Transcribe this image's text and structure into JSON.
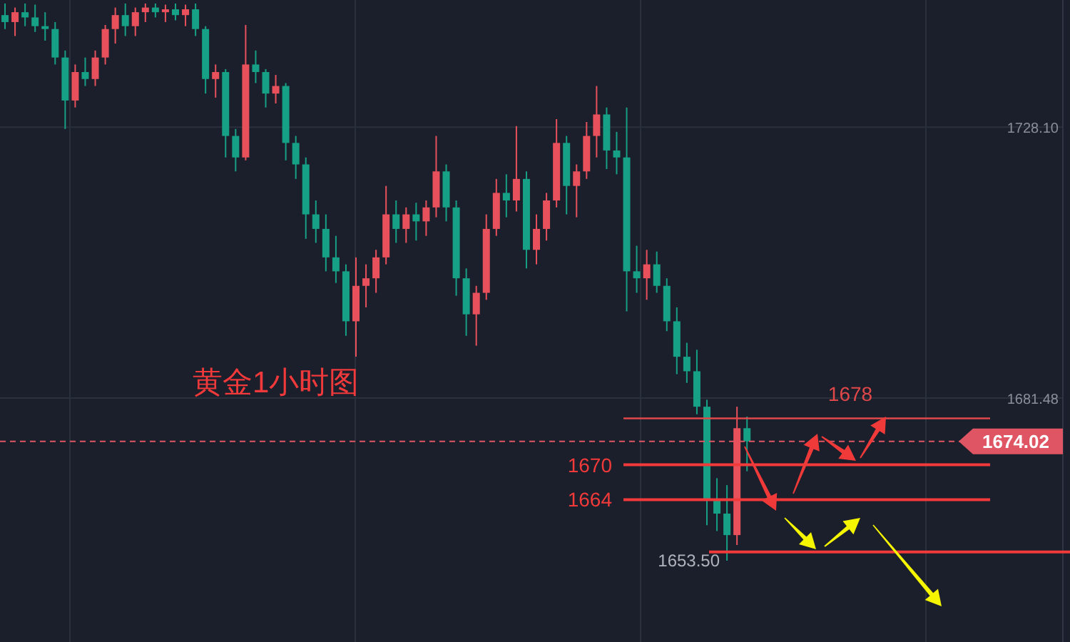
{
  "chart_data": {
    "type": "candlestick",
    "title": "黄金1小时图",
    "categories": [
      null,
      null,
      null,
      null,
      null,
      null,
      null,
      null,
      null,
      null,
      null,
      null,
      null,
      null,
      null,
      null,
      null,
      null,
      null,
      null,
      null,
      null,
      null,
      null,
      null,
      null,
      null,
      null,
      null,
      null,
      null,
      null,
      null,
      null,
      null,
      null,
      null,
      null,
      null,
      null,
      null,
      null,
      null,
      null,
      null,
      null,
      null,
      null,
      null,
      null,
      null,
      null,
      null,
      null,
      null,
      null,
      null,
      null,
      null,
      null,
      null,
      null,
      null,
      null,
      null,
      null,
      null,
      null,
      null,
      null,
      null,
      null,
      null,
      null,
      null,
      null,
      null,
      null,
      null,
      null,
      null,
      null,
      null,
      null,
      null,
      null,
      null,
      null,
      null,
      null,
      null,
      null,
      null,
      null,
      null,
      null,
      null,
      null,
      null,
      null,
      null,
      null,
      null,
      null,
      null,
      null
    ],
    "ohlc": [
      [
        1747.4,
        1749.4,
        1745.0,
        1746.2
      ],
      [
        1746.2,
        1748.7,
        1743.8,
        1747.9
      ],
      [
        1747.9,
        1749.4,
        1745.5,
        1747.0
      ],
      [
        1747.0,
        1749.2,
        1744.5,
        1745.5
      ],
      [
        1745.5,
        1747.9,
        1743.0,
        1745.0
      ],
      [
        1745.0,
        1746.2,
        1738.9,
        1740.1
      ],
      [
        1740.1,
        1741.3,
        1727.8,
        1732.7
      ],
      [
        1732.7,
        1738.9,
        1731.5,
        1737.6
      ],
      [
        1737.6,
        1740.1,
        1735.2,
        1736.4
      ],
      [
        1736.4,
        1741.3,
        1735.2,
        1740.1
      ],
      [
        1740.1,
        1745.7,
        1738.9,
        1745.0
      ],
      [
        1745.0,
        1748.7,
        1742.5,
        1747.4
      ],
      [
        1747.4,
        1749.4,
        1743.8,
        1745.5
      ],
      [
        1745.5,
        1748.7,
        1743.8,
        1747.9
      ],
      [
        1747.9,
        1749.4,
        1746.2,
        1748.7
      ],
      [
        1748.7,
        1749.4,
        1747.0,
        1747.9
      ],
      [
        1747.9,
        1749.2,
        1746.2,
        1748.4
      ],
      [
        1748.4,
        1749.4,
        1746.5,
        1747.4
      ],
      [
        1747.4,
        1749.2,
        1745.5,
        1748.4
      ],
      [
        1748.4,
        1749.4,
        1743.8,
        1745.0
      ],
      [
        1745.0,
        1745.5,
        1733.9,
        1736.4
      ],
      [
        1736.4,
        1738.9,
        1733.2,
        1737.6
      ],
      [
        1737.6,
        1738.1,
        1722.9,
        1726.6
      ],
      [
        1726.6,
        1727.8,
        1720.5,
        1722.9
      ],
      [
        1722.9,
        1745.7,
        1722.4,
        1738.9
      ],
      [
        1738.9,
        1741.3,
        1735.7,
        1737.6
      ],
      [
        1737.6,
        1738.1,
        1731.5,
        1733.9
      ],
      [
        1733.9,
        1737.1,
        1732.2,
        1735.2
      ],
      [
        1735.2,
        1735.7,
        1722.4,
        1725.4
      ],
      [
        1725.4,
        1726.6,
        1719.2,
        1721.7
      ],
      [
        1721.7,
        1722.9,
        1708.9,
        1713.1
      ],
      [
        1713.1,
        1715.5,
        1708.2,
        1710.6
      ],
      [
        1710.6,
        1713.1,
        1703.3,
        1705.7
      ],
      [
        1705.7,
        1709.4,
        1701.3,
        1703.3
      ],
      [
        1703.3,
        1704.5,
        1692.2,
        1694.7
      ],
      [
        1694.7,
        1705.7,
        1688.6,
        1700.8
      ],
      [
        1700.8,
        1704.5,
        1697.1,
        1702.1
      ],
      [
        1702.1,
        1707.0,
        1699.6,
        1705.7
      ],
      [
        1705.7,
        1718.0,
        1704.5,
        1713.1
      ],
      [
        1713.1,
        1715.5,
        1708.2,
        1710.6
      ],
      [
        1710.6,
        1714.3,
        1708.2,
        1713.1
      ],
      [
        1713.1,
        1715.1,
        1708.6,
        1711.9
      ],
      [
        1711.9,
        1715.5,
        1709.4,
        1714.3
      ],
      [
        1714.3,
        1726.6,
        1712.6,
        1720.5
      ],
      [
        1720.5,
        1721.7,
        1711.9,
        1714.3
      ],
      [
        1714.3,
        1715.5,
        1699.1,
        1702.1
      ],
      [
        1702.1,
        1703.8,
        1692.2,
        1695.9
      ],
      [
        1695.9,
        1700.8,
        1690.5,
        1699.6
      ],
      [
        1699.6,
        1713.1,
        1698.4,
        1710.6
      ],
      [
        1710.6,
        1719.2,
        1709.4,
        1716.8
      ],
      [
        1716.8,
        1720.0,
        1712.6,
        1715.5
      ],
      [
        1715.5,
        1728.3,
        1713.6,
        1719.2
      ],
      [
        1719.2,
        1720.5,
        1703.8,
        1707.0
      ],
      [
        1707.0,
        1713.1,
        1704.5,
        1710.6
      ],
      [
        1710.6,
        1716.8,
        1708.6,
        1715.5
      ],
      [
        1715.5,
        1729.5,
        1714.3,
        1725.4
      ],
      [
        1725.4,
        1726.6,
        1713.1,
        1718.0
      ],
      [
        1718.0,
        1721.7,
        1712.6,
        1720.5
      ],
      [
        1720.5,
        1729.0,
        1719.2,
        1726.6
      ],
      [
        1726.6,
        1735.2,
        1722.9,
        1730.3
      ],
      [
        1730.3,
        1731.5,
        1720.9,
        1724.1
      ],
      [
        1724.1,
        1727.3,
        1720.0,
        1722.9
      ],
      [
        1722.9,
        1731.5,
        1696.4,
        1703.3
      ],
      [
        1703.3,
        1707.7,
        1699.6,
        1702.1
      ],
      [
        1702.1,
        1707.0,
        1698.4,
        1704.5
      ],
      [
        1704.5,
        1706.7,
        1699.6,
        1700.8
      ],
      [
        1700.8,
        1702.1,
        1693.0,
        1694.7
      ],
      [
        1694.7,
        1697.1,
        1685.6,
        1688.6
      ],
      [
        1688.6,
        1691.0,
        1684.1,
        1686.1
      ],
      [
        1686.1,
        1689.8,
        1678.7,
        1680.0
      ],
      [
        1680.0,
        1681.2,
        1659.6,
        1664.0
      ],
      [
        1664.0,
        1667.7,
        1658.6,
        1661.6
      ],
      [
        1661.6,
        1666.5,
        1653.5,
        1657.9
      ],
      [
        1657.9,
        1680.0,
        1656.2,
        1676.3
      ],
      [
        1676.3,
        1678.3,
        1668.9,
        1674.02
      ],
      null,
      null,
      null,
      null,
      null,
      null,
      null,
      null,
      null,
      null,
      null,
      null,
      null,
      null,
      null,
      null,
      null,
      null,
      null,
      null,
      null,
      null,
      null,
      null,
      null,
      null,
      null,
      null,
      null,
      null,
      null
    ],
    "ylim": [
      1639.5,
      1750
    ],
    "yticks": [
      {
        "value": 1728.1,
        "label": "1728.10"
      },
      1681.48
    ],
    "tick_labels": "y",
    "grid": true,
    "ref_lines": [
      {
        "axis": "y",
        "value": 1678,
        "label": "1678",
        "color": "#e0484a"
      },
      {
        "axis": "y",
        "value": 1674.02,
        "label": "1674.02",
        "color": "#e05563",
        "line_style": "dashed"
      },
      {
        "axis": "y",
        "value": 1670,
        "label": "1670",
        "color": "#f23a3a"
      },
      {
        "axis": "y",
        "value": 1664,
        "label": "1664",
        "color": "#f23a3a"
      },
      {
        "axis": "y",
        "value": 1655,
        "color": "#f23a3a"
      }
    ],
    "annotations": [
      "1653.50"
    ]
  }
}
